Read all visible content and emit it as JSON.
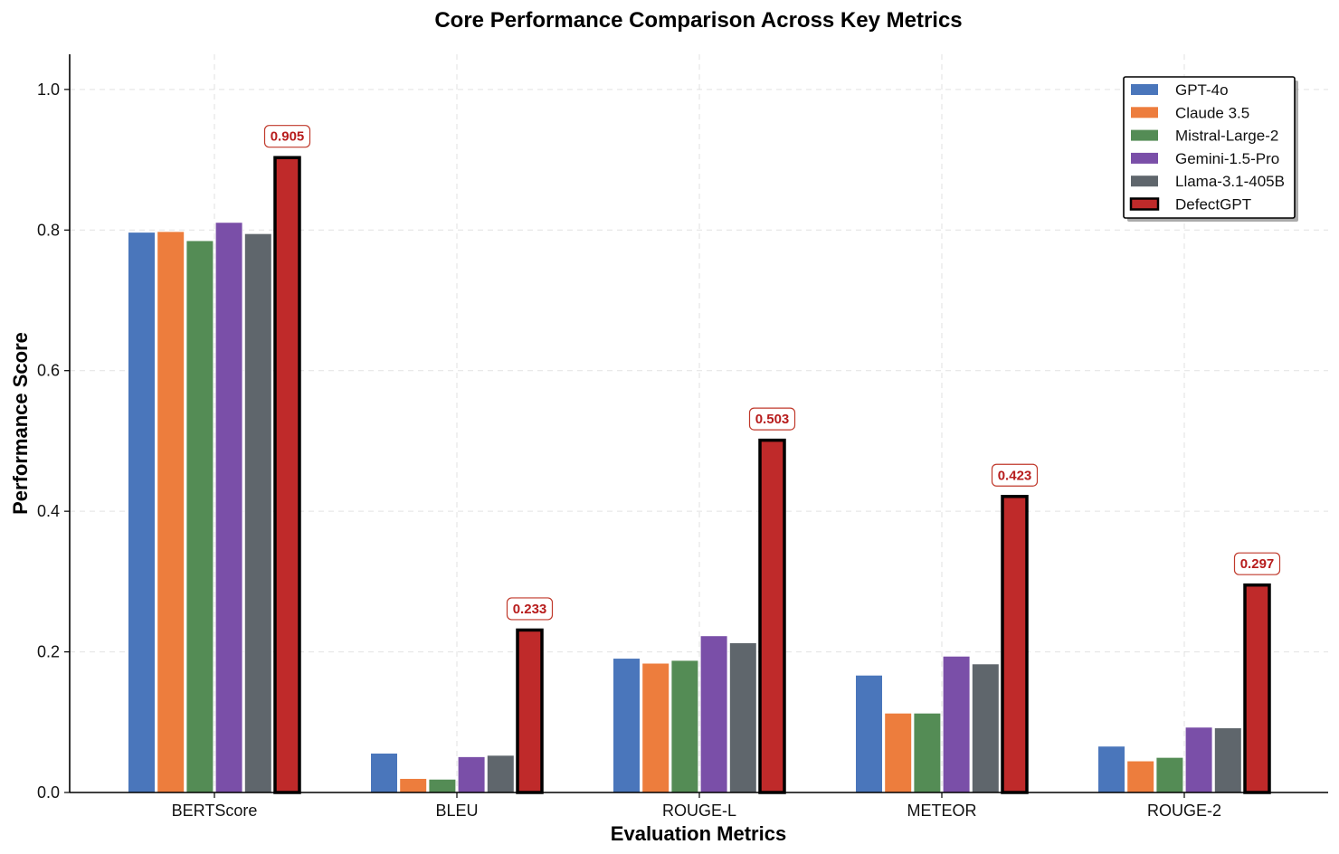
{
  "chart_data": {
    "type": "bar",
    "title": "Core Performance Comparison Across Key Metrics",
    "xlabel": "Evaluation Metrics",
    "ylabel": "Performance Score",
    "ylim": [
      0,
      1.05
    ],
    "yticks": [
      0.0,
      0.2,
      0.4,
      0.6,
      0.8,
      1.0
    ],
    "ytick_labels": [
      "0.0",
      "0.2",
      "0.4",
      "0.6",
      "0.8",
      "1.0"
    ],
    "grid": true,
    "legend_position": "top-right",
    "categories": [
      "BERTScore",
      "BLEU",
      "ROUGE-L",
      "METEOR",
      "ROUGE-2"
    ],
    "series": [
      {
        "name": "GPT-4o",
        "color": "#4a76bb",
        "values": [
          0.797,
          0.056,
          0.191,
          0.167,
          0.066
        ]
      },
      {
        "name": "Claude 3.5",
        "color": "#ed7d3d",
        "values": [
          0.798,
          0.02,
          0.184,
          0.113,
          0.045
        ]
      },
      {
        "name": "Mistral-Large-2",
        "color": "#548c55",
        "values": [
          0.785,
          0.019,
          0.188,
          0.113,
          0.05
        ]
      },
      {
        "name": "Gemini-1.5-Pro",
        "color": "#7a4fa8",
        "values": [
          0.811,
          0.051,
          0.223,
          0.194,
          0.093
        ]
      },
      {
        "name": "Llama-3.1-405B",
        "color": "#5f666c",
        "values": [
          0.795,
          0.053,
          0.213,
          0.183,
          0.092
        ]
      },
      {
        "name": "DefectGPT",
        "color": "#bf2a2a",
        "highlight": true,
        "values": [
          0.905,
          0.233,
          0.503,
          0.423,
          0.297
        ]
      }
    ],
    "annotations": [
      "0.905",
      "0.233",
      "0.503",
      "0.423",
      "0.297"
    ]
  }
}
